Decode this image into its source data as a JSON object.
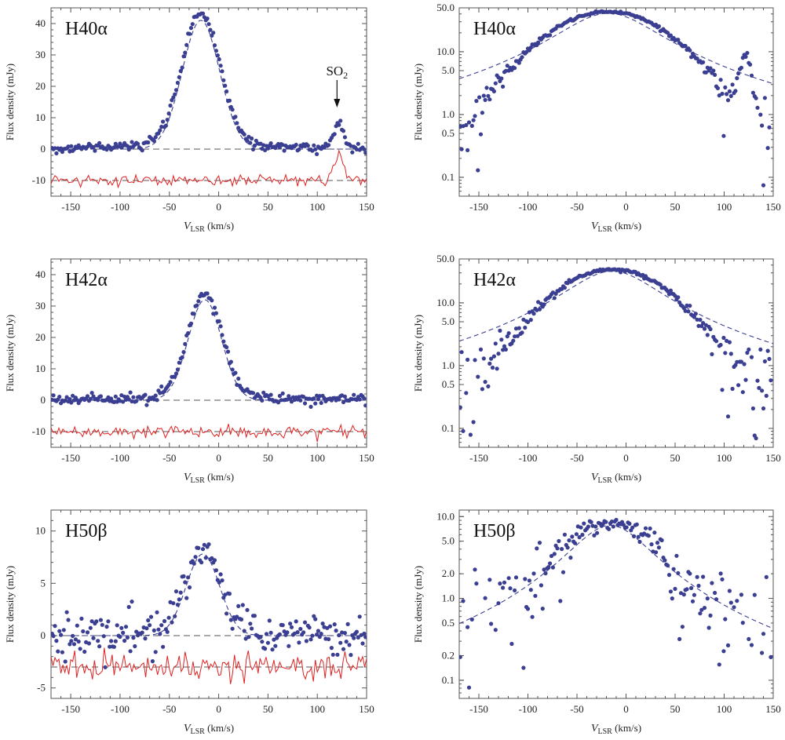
{
  "chart_data": [
    {
      "type": "scatter",
      "title": "H40α",
      "scale": "linear",
      "xlabel": "V_LSR (km/s)",
      "xlabel_main": "V",
      "xlabel_sub": "LSR",
      "xlabel_units": " (km/s)",
      "ylabel": "Flux density (mJy)",
      "xlim": [
        -170,
        150
      ],
      "ylim": [
        -15,
        45
      ],
      "xticks": [
        -150,
        -100,
        -50,
        0,
        50,
        100,
        150
      ],
      "yticks": [
        -10,
        0,
        10,
        20,
        30,
        40
      ],
      "fit": {
        "peak": 41,
        "center": -18,
        "width": 19,
        "offset": 0
      },
      "residual_offset": -10,
      "noise": 1.2,
      "annotation": {
        "text_main": "SO",
        "text_sub": "2",
        "x": 120,
        "y": 20
      },
      "extra_bump": {
        "center": 122,
        "amp": 8,
        "width": 5
      },
      "series": [
        {
          "name": "data",
          "style": "points"
        },
        {
          "name": "fit",
          "style": "dashed"
        },
        {
          "name": "residual",
          "style": "red-line"
        }
      ]
    },
    {
      "type": "scatter",
      "title": "H40α",
      "scale": "log",
      "xlabel": "V_LSR (km/s)",
      "xlabel_main": "V",
      "xlabel_sub": "LSR",
      "xlabel_units": " (km/s)",
      "ylabel": "Flux density (mJy)",
      "xlim": [
        -170,
        150
      ],
      "ylim": [
        0.05,
        50
      ],
      "xticks": [
        -150,
        -100,
        -50,
        0,
        50,
        100,
        150
      ],
      "yticks": [
        0.1,
        0.5,
        1.0,
        5.0,
        10.0,
        50.0
      ],
      "ytick_labels": [
        "0.1",
        "0.5",
        "1.0",
        "5.0",
        "10.0",
        "50.0"
      ],
      "fit": {
        "peak": 41,
        "center": -18,
        "width": 48,
        "offset": 0
      },
      "noise": 1.2,
      "extra_bump": {
        "center": 122,
        "amp": 8,
        "width": 5
      }
    },
    {
      "type": "scatter",
      "title": "H42α",
      "scale": "linear",
      "xlabel": "V_LSR (km/s)",
      "xlabel_main": "V",
      "xlabel_sub": "LSR",
      "xlabel_units": " (km/s)",
      "ylabel": "Flux density (mJy)",
      "xlim": [
        -170,
        150
      ],
      "ylim": [
        -15,
        45
      ],
      "xticks": [
        -150,
        -100,
        -50,
        0,
        50,
        100,
        150
      ],
      "yticks": [
        -10,
        0,
        10,
        20,
        30,
        40
      ],
      "fit": {
        "peak": 32,
        "center": -14,
        "width": 17,
        "offset": 0
      },
      "residual_offset": -10,
      "noise": 1.4
    },
    {
      "type": "scatter",
      "title": "H42α",
      "scale": "log",
      "xlabel": "V_LSR (km/s)",
      "xlabel_main": "V",
      "xlabel_sub": "LSR",
      "xlabel_units": " (km/s)",
      "ylabel": "Flux density (mJy)",
      "xlim": [
        -170,
        150
      ],
      "ylim": [
        0.05,
        50
      ],
      "xticks": [
        -150,
        -100,
        -50,
        0,
        50,
        100,
        150
      ],
      "yticks": [
        0.1,
        0.5,
        1.0,
        5.0,
        10.0,
        50.0
      ],
      "ytick_labels": [
        "0.1",
        "0.5",
        "1.0",
        "5.0",
        "10.0",
        "50.0"
      ],
      "fit": {
        "peak": 32,
        "center": -14,
        "width": 45,
        "offset": 0
      },
      "noise": 1.4
    },
    {
      "type": "scatter",
      "title": "H50β",
      "scale": "linear",
      "xlabel": "V_LSR (km/s)",
      "xlabel_main": "V",
      "xlabel_sub": "LSR",
      "xlabel_units": " (km/s)",
      "ylabel": "Flux density (mJy)",
      "xlim": [
        -170,
        150
      ],
      "ylim": [
        -6,
        12
      ],
      "xticks": [
        -150,
        -100,
        -50,
        0,
        50,
        100,
        150
      ],
      "yticks": [
        -5,
        0,
        5,
        10
      ],
      "fit": {
        "peak": 7.8,
        "center": -16,
        "width": 17,
        "offset": 0
      },
      "residual_offset": -3,
      "noise": 0.9
    },
    {
      "type": "scatter",
      "title": "H50β",
      "scale": "log",
      "xlabel": "V_LSR (km/s)",
      "xlabel_main": "V",
      "xlabel_sub": "LSR",
      "xlabel_units": " (km/s)",
      "ylabel": "Flux density (mJy)",
      "xlim": [
        -170,
        150
      ],
      "ylim": [
        0.06,
        12
      ],
      "xticks": [
        -150,
        -100,
        -50,
        0,
        50,
        100,
        150
      ],
      "yticks": [
        0.1,
        0.2,
        0.5,
        1.0,
        2.0,
        5.0,
        10.0
      ],
      "ytick_labels": [
        "0.1",
        "0.2",
        "0.5",
        "1.0",
        "2.0",
        "5.0",
        "10.0"
      ],
      "fit": {
        "peak": 7.8,
        "center": -16,
        "width": 40,
        "offset": 0
      },
      "noise": 0.9
    }
  ]
}
